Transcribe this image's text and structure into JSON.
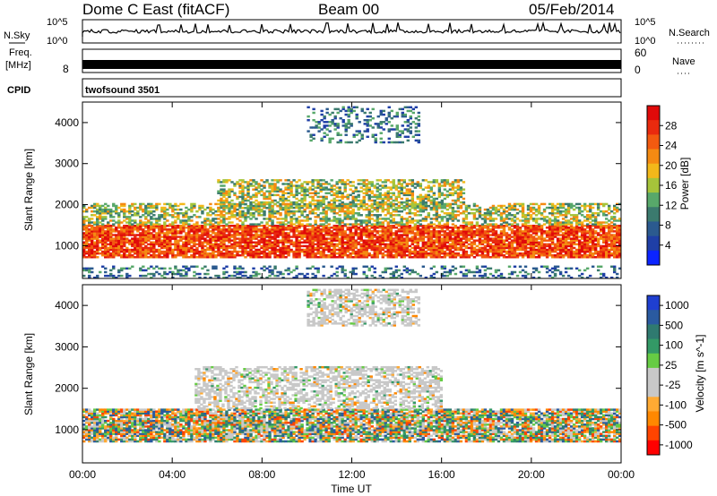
{
  "header": {
    "title": "Dome C East (fitACF)",
    "beam": "Beam 00",
    "date": "05/Feb/2014"
  },
  "noise_panel": {
    "left_label": "N.Sky",
    "right_label": "N.Search",
    "left_ticks": [
      "10^5",
      "10^0"
    ],
    "right_ticks": [
      "10^5",
      "10^0"
    ]
  },
  "freq_panel": {
    "left_label": "Freq.",
    "left_unit": "[MHz]",
    "left_tick": "8",
    "right_label": "Nave",
    "right_ticks": [
      "60",
      "0"
    ]
  },
  "cpid_panel": {
    "label": "CPID",
    "value": "twofsound 3501"
  },
  "colors": {
    "power_scale": [
      "#0b24ff",
      "#1f3fa6",
      "#2b5a8f",
      "#3b7a6e",
      "#58a86a",
      "#a6c43a",
      "#f2b81a",
      "#f48a12",
      "#f25a10",
      "#e92a0e",
      "#e00a0a"
    ],
    "velocity_scale": [
      "#ff0000",
      "#ff4400",
      "#ff8800",
      "#ffaa33",
      "#c8c8c8",
      "#c8c8c8",
      "#66cc44",
      "#339966",
      "#2f7a70",
      "#2a5aa0",
      "#1f3fd0"
    ]
  },
  "chart_data": [
    {
      "type": "heatmap",
      "title": "Power",
      "xlabel": "",
      "ylabel": "Slant Range [km]",
      "colorbar_label": "Power [dB]",
      "colorbar_ticks": [
        "4",
        "8",
        "12",
        "16",
        "20",
        "24",
        "28"
      ],
      "x_ticks": [
        "00:00",
        "04:00",
        "08:00",
        "12:00",
        "16:00",
        "20:00",
        "00:00"
      ],
      "y_ticks": [
        "1000",
        "2000",
        "3000",
        "4000"
      ],
      "xlim_hours": [
        0,
        24
      ],
      "ylim_km": [
        200,
        4500
      ],
      "regions": [
        {
          "t0": 0,
          "t1": 24,
          "r0": 700,
          "r1": 1500,
          "level": "high"
        },
        {
          "t0": 0,
          "t1": 24,
          "r0": 1500,
          "r1": 2000,
          "level": "mid"
        },
        {
          "t0": 6,
          "t1": 17,
          "r0": 1900,
          "r1": 2600,
          "level": "mid"
        },
        {
          "t0": 10,
          "t1": 15,
          "r0": 3500,
          "r1": 4400,
          "level": "low"
        },
        {
          "t0": 0,
          "t1": 24,
          "r0": 200,
          "r1": 500,
          "level": "low"
        }
      ]
    },
    {
      "type": "heatmap",
      "title": "Velocity",
      "xlabel": "Time UT",
      "ylabel": "Slant Range [km]",
      "colorbar_label": "Velocity [m s^-1]",
      "colorbar_ticks": [
        "1000",
        "500",
        "100",
        "25",
        "-25",
        "-100",
        "-500",
        "-1000"
      ],
      "x_ticks": [
        "00:00",
        "04:00",
        "08:00",
        "12:00",
        "16:00",
        "20:00",
        "00:00"
      ],
      "y_ticks": [
        "1000",
        "2000",
        "3000",
        "4000"
      ],
      "xlim_hours": [
        0,
        24
      ],
      "ylim_km": [
        200,
        4500
      ],
      "regions": [
        {
          "t0": 0,
          "t1": 24,
          "r0": 700,
          "r1": 1500,
          "level": "mixed"
        },
        {
          "t0": 5,
          "t1": 16,
          "r0": 1500,
          "r1": 2500,
          "level": "near-zero"
        },
        {
          "t0": 10,
          "t1": 15,
          "r0": 3500,
          "r1": 4400,
          "level": "near-zero"
        }
      ]
    }
  ]
}
